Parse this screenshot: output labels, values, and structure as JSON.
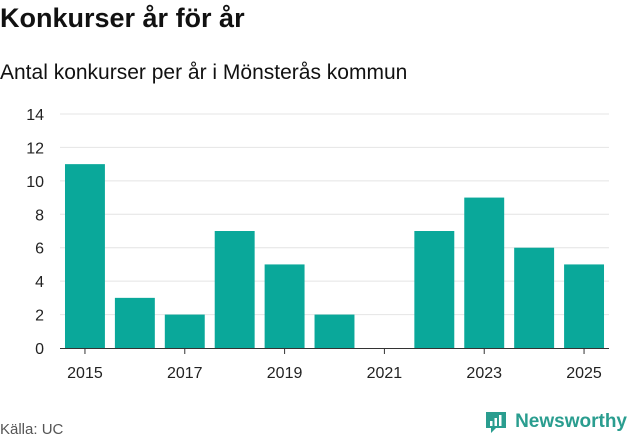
{
  "page": {
    "title": "Konkurser år för år",
    "subtitle": "Antal konkurser per år i Mönsterås kommun",
    "source": "Källa: UC",
    "brand": "Newsworthy"
  },
  "colors": {
    "bar": "#0aa89a",
    "grid": "#e4e4e4",
    "axis": "#333333",
    "brand": "#2a9d8f"
  },
  "chart_data": {
    "type": "bar",
    "title": "Konkurser år för år",
    "subtitle": "Antal konkurser per år i Mönsterås kommun",
    "xlabel": "",
    "ylabel": "",
    "categories": [
      "2015",
      "2016",
      "2017",
      "2018",
      "2019",
      "2020",
      "2021",
      "2022",
      "2023",
      "2024",
      "2025"
    ],
    "values": [
      11,
      3,
      2,
      7,
      5,
      2,
      0,
      7,
      9,
      6,
      5
    ],
    "x_tick_labels": [
      "2015",
      "2017",
      "2019",
      "2021",
      "2023",
      "2025"
    ],
    "y_ticks": [
      0,
      2,
      4,
      6,
      8,
      10,
      12,
      14
    ],
    "ylim": [
      0,
      14
    ],
    "grid": true
  }
}
